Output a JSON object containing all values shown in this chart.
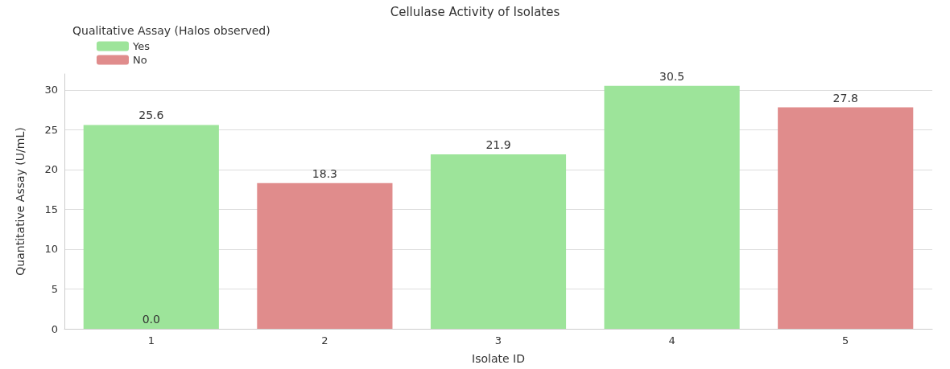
{
  "chart_data": {
    "type": "bar",
    "title": "Cellulase Activity of Isolates",
    "xlabel": "Isolate ID",
    "ylabel": "Quantitative Assay (U/mL)",
    "legend_title": "Qualitative Assay (Halos observed)",
    "categories": [
      "1",
      "2",
      "3",
      "4",
      "5"
    ],
    "series": [
      {
        "name": "Yes",
        "color": "#9de49a",
        "values": [
          25.6,
          null,
          21.9,
          30.5,
          null
        ],
        "value_labels": [
          "25.6",
          null,
          "21.9",
          "30.5",
          null
        ]
      },
      {
        "name": "No",
        "color": "#e08c8c",
        "values": [
          0,
          18.3,
          null,
          null,
          27.8
        ],
        "value_labels": [
          "0.0",
          "18.3",
          null,
          null,
          "27.8"
        ]
      }
    ],
    "ylim": [
      0,
      32
    ],
    "yticks": [
      0,
      5,
      10,
      15,
      20,
      25,
      30
    ],
    "grid": "y",
    "legend": "top left"
  }
}
